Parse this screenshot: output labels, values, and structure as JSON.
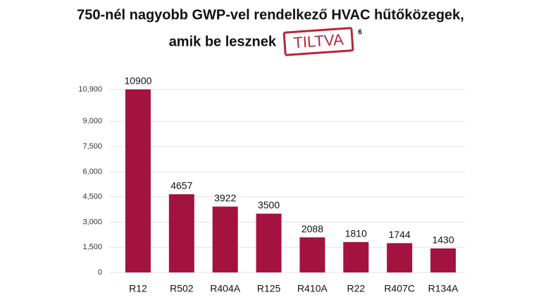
{
  "chart_data": {
    "type": "bar",
    "title": "750-nél nagyobb GWP-vel rendelkező HVAC hűtőközegek,",
    "subtitle": "amik be lesznek",
    "stamp": "TILTVA",
    "footnote": "6",
    "categories": [
      "R12",
      "R502",
      "R404A",
      "R125",
      "R410A",
      "R22",
      "R407C",
      "R134A"
    ],
    "values": [
      10900,
      4657,
      3922,
      3500,
      2088,
      1810,
      1744,
      1430
    ],
    "color": "#a4123f",
    "ylim": [
      0,
      10900
    ],
    "yticks": [
      0,
      {
        "value": 1500,
        "label": "1,500"
      },
      {
        "value": 3000,
        "label": "3,000"
      },
      {
        "value": 4500,
        "label": "4,500"
      },
      {
        "value": 6000,
        "label": "6,000"
      },
      {
        "value": 7500,
        "label": "7,500"
      },
      {
        "value": 9000,
        "label": "9,000"
      },
      {
        "value": 10900,
        "label": "10,900"
      }
    ],
    "grid": true
  }
}
